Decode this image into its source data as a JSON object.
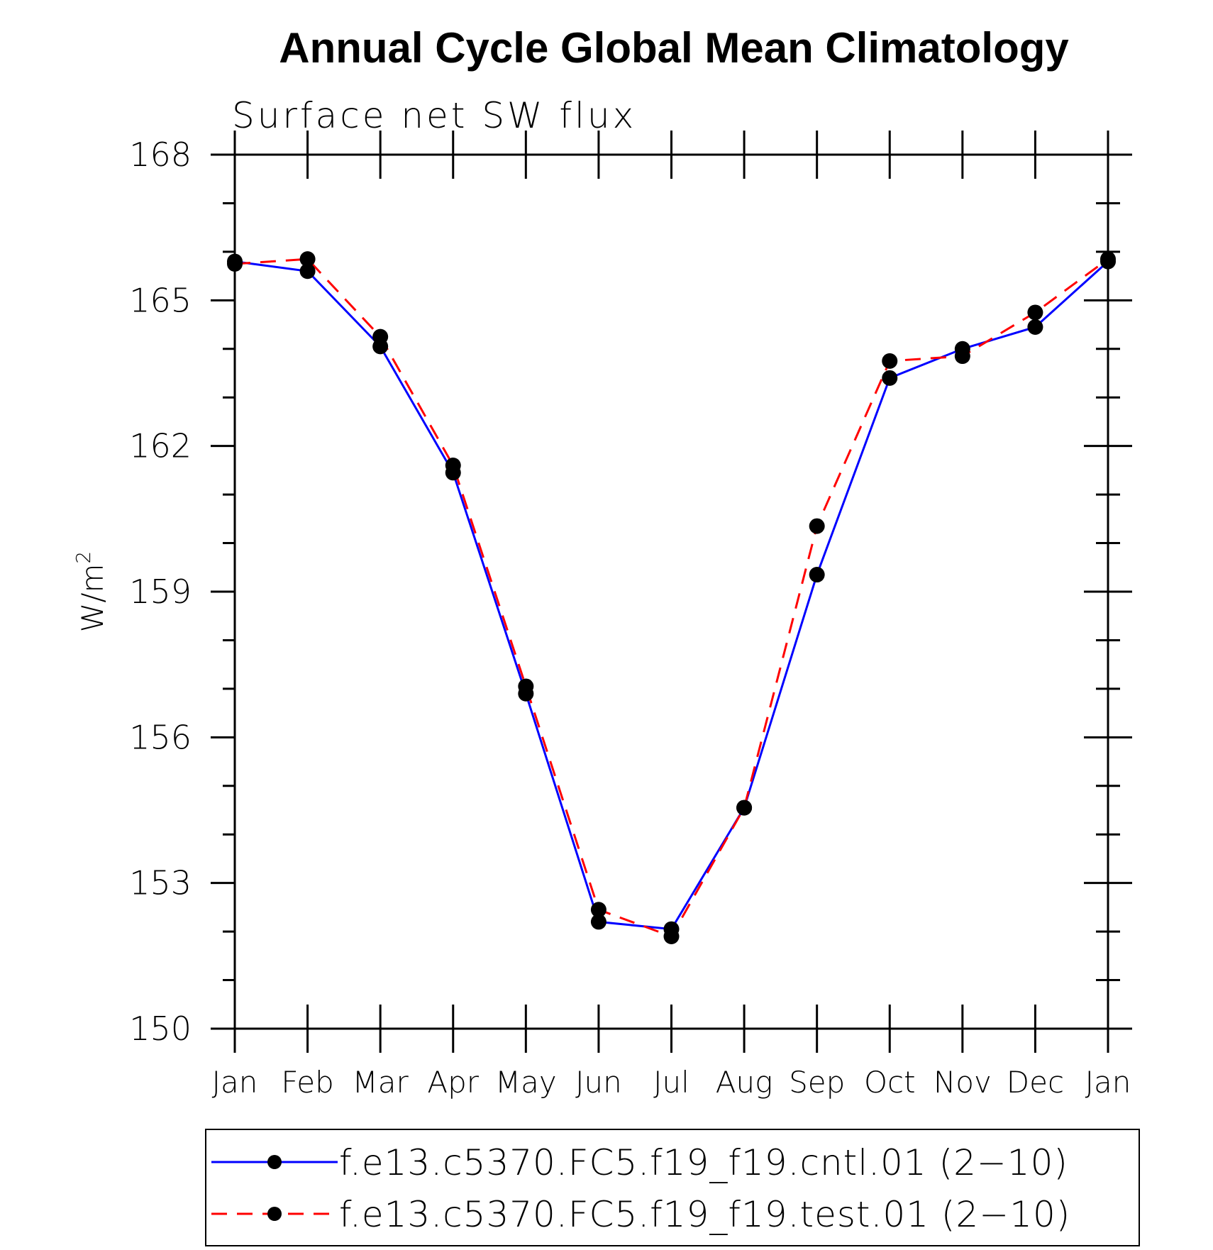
{
  "chart_data": {
    "type": "line",
    "title": "Annual Cycle Global Mean Climatology",
    "subtitle": "Surface net SW flux",
    "ylabel": "W/m",
    "ylabel_superscript": "2",
    "xlabel": "",
    "categories": [
      "Jan",
      "Feb",
      "Mar",
      "Apr",
      "May",
      "Jun",
      "Jul",
      "Aug",
      "Sep",
      "Oct",
      "Nov",
      "Dec",
      "Jan"
    ],
    "ylim": [
      150,
      168
    ],
    "yticks": [
      "150",
      "153",
      "156",
      "159",
      "162",
      "165",
      "168"
    ],
    "grid": false,
    "legend_position": "bottom",
    "series": [
      {
        "name": "f.e13.c5370.FC5.f19_f19.cntl.01 (2−10)",
        "color": "#0000ff",
        "style": "solid",
        "marker": "circle",
        "values": [
          165.8,
          165.6,
          164.05,
          161.45,
          156.9,
          152.2,
          152.05,
          154.55,
          159.35,
          163.4,
          164.0,
          164.45,
          165.8
        ]
      },
      {
        "name": "f.e13.c5370.FC5.f19_f19.test.01 (2−10)",
        "color": "#ff0000",
        "style": "dashed",
        "marker": "circle",
        "values": [
          165.75,
          165.85,
          164.25,
          161.6,
          157.05,
          152.45,
          151.9,
          154.55,
          160.35,
          163.75,
          163.85,
          164.75,
          165.85
        ]
      }
    ]
  }
}
